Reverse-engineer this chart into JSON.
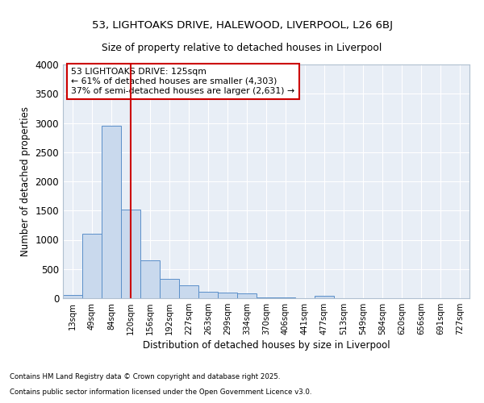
{
  "title1": "53, LIGHTOAKS DRIVE, HALEWOOD, LIVERPOOL, L26 6BJ",
  "title2": "Size of property relative to detached houses in Liverpool",
  "xlabel": "Distribution of detached houses by size in Liverpool",
  "ylabel": "Number of detached properties",
  "categories": [
    "13sqm",
    "49sqm",
    "84sqm",
    "120sqm",
    "156sqm",
    "192sqm",
    "227sqm",
    "263sqm",
    "299sqm",
    "334sqm",
    "370sqm",
    "406sqm",
    "441sqm",
    "477sqm",
    "513sqm",
    "549sqm",
    "584sqm",
    "620sqm",
    "656sqm",
    "691sqm",
    "727sqm"
  ],
  "values": [
    50,
    1110,
    2950,
    1520,
    650,
    330,
    215,
    105,
    100,
    80,
    15,
    10,
    5,
    40,
    5,
    0,
    0,
    0,
    0,
    0,
    0
  ],
  "bar_color": "#c9d9ed",
  "bar_edge_color": "#5b8fc9",
  "background_color": "#e8eef6",
  "grid_color": "#ffffff",
  "vline_color": "#cc0000",
  "annotation_text": "53 LIGHTOAKS DRIVE: 125sqm\n← 61% of detached houses are smaller (4,303)\n37% of semi-detached houses are larger (2,631) →",
  "annotation_box_color": "#cc0000",
  "ylim": [
    0,
    4000
  ],
  "yticks": [
    0,
    500,
    1000,
    1500,
    2000,
    2500,
    3000,
    3500,
    4000
  ],
  "footer1": "Contains HM Land Registry data © Crown copyright and database right 2025.",
  "footer2": "Contains public sector information licensed under the Open Government Licence v3.0.",
  "fig_facecolor": "#ffffff"
}
